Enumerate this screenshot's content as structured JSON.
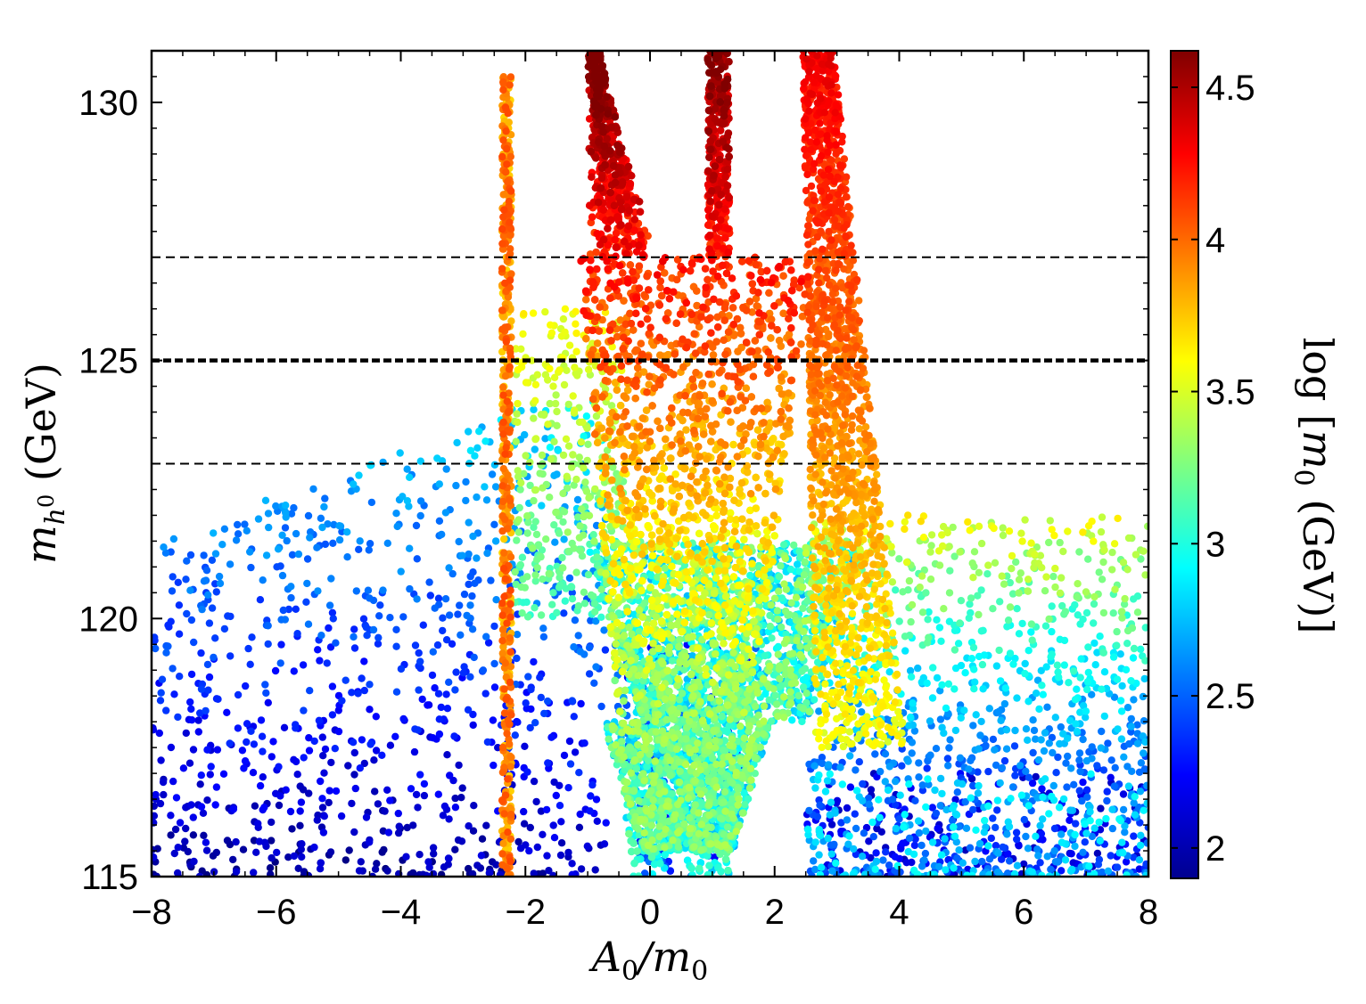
{
  "chart_data": {
    "type": "scatter",
    "xlabel": "A0/m0",
    "ylabel": "mh0 (GeV)",
    "xlim": [
      -8,
      8
    ],
    "ylim": [
      115,
      131
    ],
    "xticks": [
      "−8",
      "−6",
      "−4",
      "−2",
      "0",
      "2",
      "4",
      "6",
      "8"
    ],
    "xtick_values": [
      -8,
      -6,
      -4,
      -2,
      0,
      2,
      4,
      6,
      8
    ],
    "yticks": [
      "115",
      "120",
      "125",
      "130"
    ],
    "ytick_values": [
      115,
      120,
      125,
      130
    ],
    "reference_lines": [
      {
        "y": 127,
        "style": "dashed"
      },
      {
        "y": 125,
        "style": "dashed-bold"
      },
      {
        "y": 123,
        "style": "dashed"
      }
    ],
    "colorbar": {
      "label": "log [m0 (GeV)]",
      "range": [
        1.9,
        4.62
      ],
      "ticks": [
        "2",
        "2.5",
        "3",
        "3.5",
        "4",
        "4.5"
      ],
      "tick_values": [
        2,
        2.5,
        3,
        3.5,
        4,
        4.5
      ],
      "colormap": "jet"
    },
    "regions": [
      {
        "name": "dense-core-v",
        "x": [
          -1.0,
          2.8
        ],
        "y": [
          115,
          131
        ],
        "logm0": [
          3.0,
          4.6
        ],
        "density": "high"
      },
      {
        "name": "left-branch-line",
        "x": [
          -2.4,
          -2.2
        ],
        "y": [
          115,
          130.5
        ],
        "logm0": [
          3.3,
          4.1
        ],
        "density": "medium"
      },
      {
        "name": "right-branch",
        "x": [
          2.6,
          4.2
        ],
        "y": [
          118,
          131
        ],
        "logm0": [
          3.6,
          4.3
        ],
        "density": "medium"
      },
      {
        "name": "left-sparse-cloud",
        "x": [
          -8,
          -0.5
        ],
        "y": [
          115,
          124.7
        ],
        "logm0": [
          1.95,
          3.1
        ],
        "density": "low"
      },
      {
        "name": "right-sparse-cloud",
        "x": [
          2.5,
          8
        ],
        "y": [
          115,
          122
        ],
        "logm0": [
          2.0,
          3.6
        ],
        "density": "low"
      }
    ],
    "grid": false
  },
  "colors": {
    "axis": "#000000",
    "background": "#ffffff"
  }
}
